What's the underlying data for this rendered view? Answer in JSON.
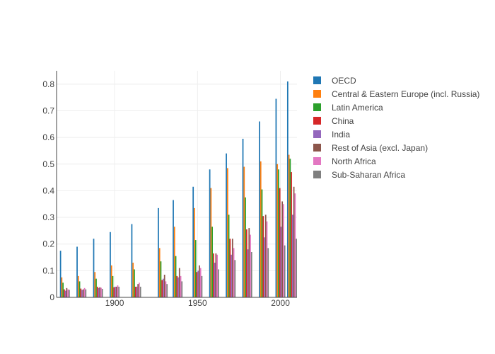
{
  "chart_data": {
    "type": "bar",
    "title": "",
    "xlabel": "",
    "ylabel": "",
    "x": [
      1870,
      1880,
      1890,
      1900,
      1913,
      1929,
      1938,
      1950,
      1960,
      1970,
      1980,
      1990,
      2000,
      2007
    ],
    "xlim": [
      1865,
      2010
    ],
    "x_ticks": [
      1900,
      1950,
      2000
    ],
    "ylim": [
      0,
      0.85
    ],
    "y_ticks": [
      0,
      0.1,
      0.2,
      0.3,
      0.4,
      0.5,
      0.6,
      0.7,
      0.8
    ],
    "grid": true,
    "legend_position": "right",
    "series": [
      {
        "name": "OECD",
        "color": "#1f77b4",
        "values": [
          0.175,
          0.19,
          0.22,
          0.245,
          0.275,
          0.335,
          0.365,
          0.415,
          0.48,
          0.54,
          0.595,
          0.66,
          0.745,
          0.81
        ]
      },
      {
        "name": "Central & Eastern Europe (incl. Russia)",
        "color": "#ff7f0e",
        "values": [
          0.075,
          0.08,
          0.095,
          0.12,
          0.13,
          0.185,
          0.265,
          0.335,
          0.41,
          0.485,
          0.49,
          0.51,
          0.5,
          0.535
        ]
      },
      {
        "name": "Latin America",
        "color": "#2ca02c",
        "values": [
          0.055,
          0.06,
          0.07,
          0.08,
          0.105,
          0.135,
          0.155,
          0.215,
          0.265,
          0.31,
          0.375,
          0.405,
          0.48,
          0.52
        ]
      },
      {
        "name": "China",
        "color": "#d62728",
        "values": [
          0.03,
          0.033,
          0.04,
          0.038,
          0.04,
          0.065,
          0.08,
          0.095,
          0.165,
          0.22,
          0.255,
          0.305,
          0.41,
          0.47
        ]
      },
      {
        "name": "India",
        "color": "#9467bd",
        "values": [
          0.025,
          0.028,
          0.035,
          0.04,
          0.04,
          0.07,
          0.075,
          0.1,
          0.13,
          0.16,
          0.18,
          0.225,
          0.265,
          0.31
        ]
      },
      {
        "name": "Rest of Asia (excl. Japan)",
        "color": "#8c564b",
        "values": [
          0.035,
          0.03,
          0.038,
          0.04,
          0.05,
          0.085,
          0.11,
          0.12,
          0.165,
          0.22,
          0.26,
          0.31,
          0.36,
          0.415
        ]
      },
      {
        "name": "North Africa",
        "color": "#e377c2",
        "values": [
          0.03,
          0.035,
          0.036,
          0.045,
          0.055,
          0.06,
          0.08,
          0.11,
          0.16,
          0.185,
          0.235,
          0.285,
          0.35,
          0.39
        ]
      },
      {
        "name": "Sub-Saharan Africa",
        "color": "#7f7f7f",
        "values": [
          0.028,
          0.03,
          0.032,
          0.04,
          0.04,
          0.05,
          0.06,
          0.08,
          0.105,
          0.14,
          0.17,
          0.185,
          0.195,
          0.22
        ]
      }
    ]
  }
}
